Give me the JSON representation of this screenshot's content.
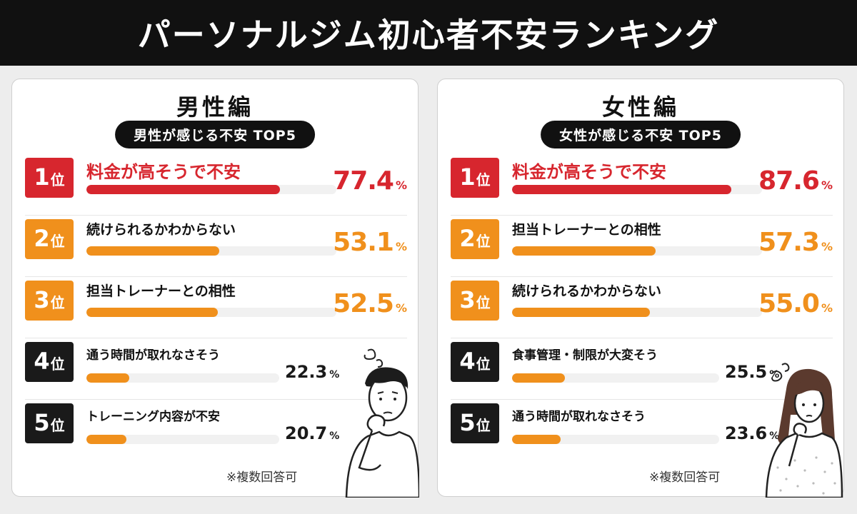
{
  "title": "パーソナルジム初心者不安ランキング",
  "colors": {
    "top": "#d7262e",
    "mid": "#f0901c",
    "low": "#1a1a1a",
    "bar_low": "#f0901c"
  },
  "chart_data": [
    {
      "type": "bar",
      "title": "男性編",
      "subtitle": "男性が感じる不安 TOP5",
      "unit": "%",
      "xlim": [
        0,
        100
      ],
      "note": "※複数回答可",
      "rank_suffix": "位",
      "categories": [
        "料金が高そうで不安",
        "続けられるかわからない",
        "担当トレーナーとの相性",
        "通う時間が取れなさそう",
        "トレーニング内容が不安"
      ],
      "ranks": [
        "1",
        "2",
        "3",
        "4",
        "5"
      ],
      "values": [
        77.4,
        53.1,
        52.5,
        22.3,
        20.7
      ],
      "value_labels": [
        "77.4",
        "53.1",
        "52.5",
        "22.3",
        "20.7"
      ]
    },
    {
      "type": "bar",
      "title": "女性編",
      "subtitle": "女性が感じる不安 TOP5",
      "unit": "%",
      "xlim": [
        0,
        100
      ],
      "note": "※複数回答可",
      "rank_suffix": "位",
      "categories": [
        "料金が高そうで不安",
        "担当トレーナーとの相性",
        "続けられるかわからない",
        "食事管理・制限が大変そう",
        "通う時間が取れなさそう"
      ],
      "ranks": [
        "1",
        "2",
        "3",
        "4",
        "5"
      ],
      "values": [
        87.6,
        57.3,
        55.0,
        25.5,
        23.6
      ],
      "value_labels": [
        "87.6",
        "57.3",
        "55.0",
        "25.5",
        "23.6"
      ]
    }
  ]
}
